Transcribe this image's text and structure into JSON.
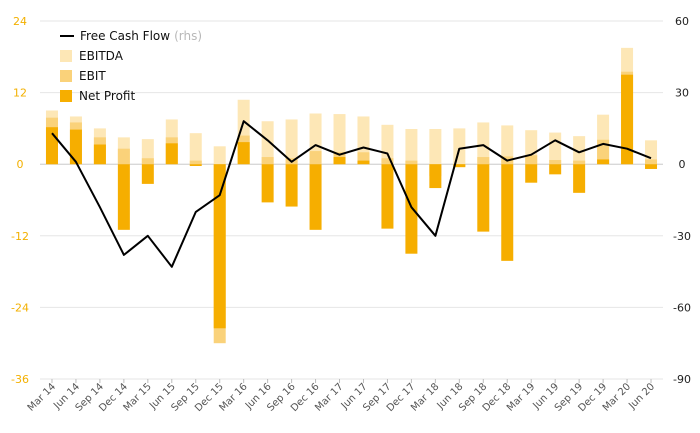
{
  "colors": {
    "ebitda": "#fde7b6",
    "ebit": "#fad27a",
    "net_profit": "#f6ae00",
    "fcf": "#000000",
    "left_axis_text": "#f3b000",
    "right_axis_text": "#222222",
    "grid": "#e6e6e6",
    "xtick": "#555555"
  },
  "legend": {
    "fcf_label": "Free Cash Flow",
    "fcf_note": "(rhs)",
    "ebitda_label": "EBITDA",
    "ebit_label": "EBIT",
    "np_label": "Net Profit"
  },
  "chart_data": {
    "type": "bar",
    "categories": [
      "Mar 14",
      "Jun 14",
      "Sep 14",
      "Dec 14",
      "Mar 15",
      "Jun 15",
      "Sep 15",
      "Dec 15",
      "Mar 16",
      "Jun 16",
      "Sep 16",
      "Dec 16",
      "Mar 17",
      "Jun 17",
      "Sep 17",
      "Dec 17",
      "Mar 18",
      "Jun 18",
      "Sep 18",
      "Dec 18",
      "Mar 19",
      "Jun 19",
      "Sep 19",
      "Dec 19",
      "Mar 20",
      "Jun 20"
    ],
    "series": [
      {
        "name": "EBITDA",
        "axis": "left",
        "values": [
          9,
          8,
          6,
          4.5,
          4.2,
          7.5,
          5.2,
          3,
          10.8,
          7.2,
          7.5,
          8.5,
          8.4,
          8,
          6.6,
          5.9,
          5.9,
          6,
          7,
          6.5,
          5.7,
          5.3,
          4.7,
          8.3,
          19.5,
          4
        ]
      },
      {
        "name": "EBIT",
        "axis": "left",
        "values": [
          7.8,
          7,
          4.5,
          2.6,
          1,
          4.5,
          0.6,
          -30,
          4.8,
          1.2,
          1,
          2.2,
          2,
          2,
          1,
          0.6,
          -2,
          -0.4,
          1.2,
          1.3,
          1.5,
          0.7,
          0.6,
          4.1,
          15.5,
          0.8
        ]
      },
      {
        "name": "Net Profit",
        "axis": "left",
        "values": [
          6.2,
          5.8,
          3.3,
          -11,
          -3.3,
          3.5,
          -0.3,
          -27.5,
          3.7,
          -6.4,
          -7.1,
          -11,
          1.2,
          0.6,
          -10.8,
          -15,
          -4,
          -0.5,
          -11.3,
          -16.2,
          -3.1,
          -1.7,
          -4.8,
          0.8,
          15,
          -0.8
        ]
      },
      {
        "name": "Free Cash Flow",
        "axis": "right",
        "type": "line",
        "values": [
          13,
          1,
          -18,
          -38,
          -30,
          -43,
          -20,
          -13,
          18,
          10,
          1,
          8,
          4,
          7,
          4.5,
          -18,
          -30,
          6.5,
          8,
          1.5,
          4,
          10,
          5,
          8.5,
          6.5,
          2.5
        ]
      }
    ],
    "left_axis": {
      "ylim": [
        -36,
        24
      ],
      "ticks": [
        24,
        12,
        0,
        -12,
        -24,
        -36
      ]
    },
    "right_axis": {
      "ylim": [
        -90,
        60
      ],
      "ticks": [
        60,
        30,
        0,
        -30,
        -60,
        -90
      ]
    },
    "grid": true,
    "legend_position": "top-left"
  }
}
